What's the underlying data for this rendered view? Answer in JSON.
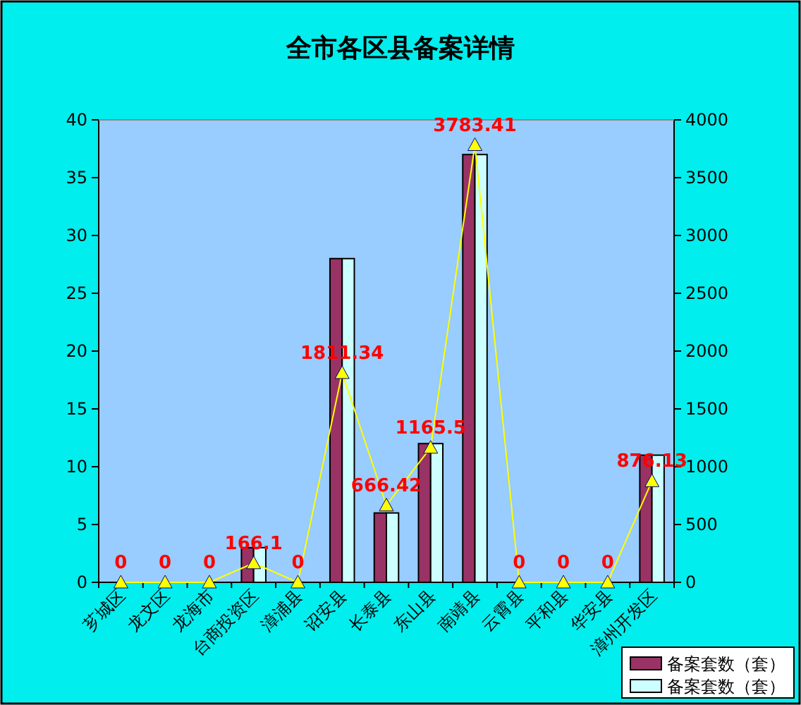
{
  "chart_data": {
    "type": "bar",
    "title": "全市各区县备案详情",
    "categories": [
      "芗城区",
      "龙文区",
      "龙海市",
      "台商投资区",
      "漳浦县",
      "诏安县",
      "长泰县",
      "东山县",
      "南靖县",
      "云霄县",
      "平和县",
      "华安县",
      "漳州开发区"
    ],
    "series": [
      {
        "name": "备案套数（套）",
        "color": "#993366",
        "values": [
          0,
          0,
          0,
          3,
          0,
          28,
          6,
          12,
          37,
          0,
          0,
          0,
          11
        ]
      },
      {
        "name": "备案套数（套）",
        "color": "#ccffff",
        "values": [
          0,
          0,
          0,
          3,
          0,
          28,
          6,
          12,
          37,
          0,
          0,
          0,
          11
        ]
      },
      {
        "type": "line",
        "axis": "y2",
        "color": "#ffff00",
        "marker": "triangle",
        "values": [
          0,
          0,
          0,
          166.1,
          0,
          1811.34,
          666.42,
          1165.5,
          3783.41,
          0,
          0,
          0,
          876.13
        ],
        "value_labels": [
          "0",
          "0",
          "0",
          "166.1",
          "0",
          "1811.34",
          "666.42",
          "1165.5",
          "3783.41",
          "0",
          "0",
          "0",
          "876.13"
        ]
      }
    ],
    "ylim": [
      0,
      40
    ],
    "yticks": [
      0,
      5,
      10,
      15,
      20,
      25,
      30,
      35,
      40
    ],
    "y2lim": [
      0,
      4000
    ],
    "y2ticks": [
      0,
      500,
      1000,
      1500,
      2000,
      2500,
      3000,
      3500,
      4000
    ],
    "legend": "bottom right",
    "grid": false
  }
}
